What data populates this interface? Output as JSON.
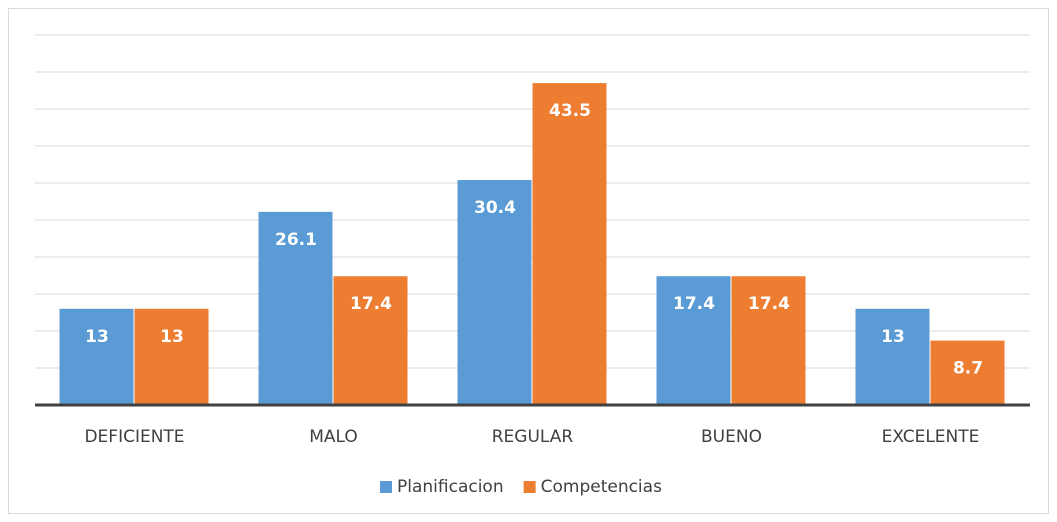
{
  "chart_data": {
    "type": "bar",
    "categories": [
      "DEFICIENTE",
      "MALO",
      "REGULAR",
      "BUENO",
      "EXCELENTE"
    ],
    "series": [
      {
        "name": "Planificacion",
        "color": "#5b9bd5",
        "values": [
          13,
          26.1,
          30.4,
          17.4,
          13
        ]
      },
      {
        "name": "Competencias",
        "color": "#ed7d31",
        "values": [
          13,
          17.4,
          43.5,
          17.4,
          8.7
        ]
      }
    ],
    "ylim": [
      0,
      50
    ],
    "yticks": [
      0,
      5,
      10,
      15,
      20,
      25,
      30,
      35,
      40,
      45,
      50
    ],
    "grid": true,
    "legend": "bottom"
  }
}
